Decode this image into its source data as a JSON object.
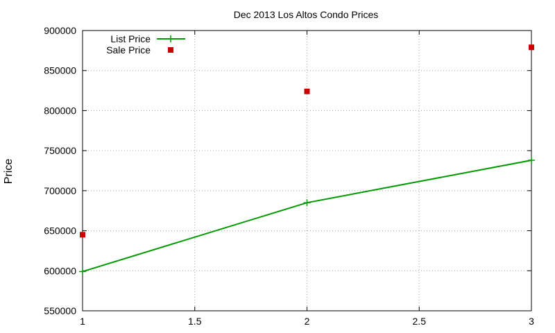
{
  "chart_data": {
    "type": "line",
    "title": "Dec 2013 Los Altos Condo Prices",
    "xlabel": "",
    "ylabel": "Price",
    "xlim": [
      1,
      3
    ],
    "ylim": [
      550000,
      900000
    ],
    "x_ticks": [
      1,
      1.5,
      2,
      2.5,
      3
    ],
    "y_ticks": [
      550000,
      600000,
      650000,
      700000,
      750000,
      800000,
      850000,
      900000
    ],
    "grid": true,
    "legend_position": "top-left",
    "series": [
      {
        "name": "List Price",
        "style": "lines+points",
        "color": "#009900",
        "x": [
          1,
          2,
          3
        ],
        "values": [
          599000,
          685000,
          738000
        ]
      },
      {
        "name": "Sale Price",
        "style": "points",
        "color": "#cc0000",
        "x": [
          1,
          2,
          3
        ],
        "values": [
          645000,
          824000,
          879000
        ]
      }
    ]
  }
}
